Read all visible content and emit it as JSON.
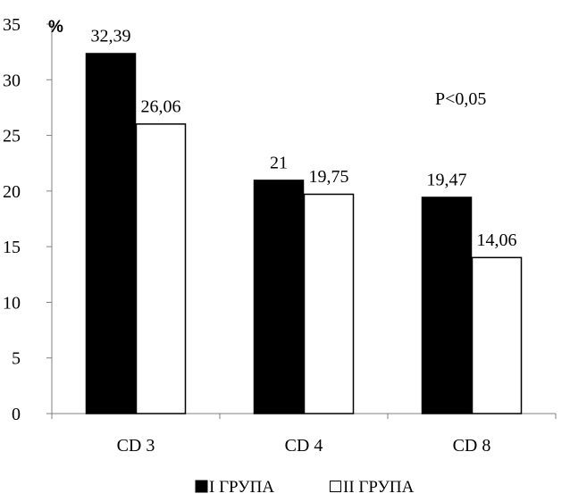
{
  "chart_data": {
    "type": "bar",
    "unit_label": "%",
    "annotation": "P<0,05",
    "categories": [
      "CD 3",
      "CD 4",
      "CD 8"
    ],
    "ylim": [
      0,
      35
    ],
    "yticks": [
      "0",
      "5",
      "10",
      "15",
      "20",
      "25",
      "30",
      "35"
    ],
    "ytick_values": [
      0,
      5,
      10,
      15,
      20,
      25,
      30,
      35
    ],
    "grid": false,
    "legend_position": "bottom",
    "series": [
      {
        "name": "I ГРУПА",
        "color": "#000000",
        "values": [
          32.39,
          21,
          19.47
        ],
        "labels": [
          "32,39",
          "21",
          "19,47"
        ]
      },
      {
        "name": "II ГРУПА",
        "color": "#ffffff",
        "values": [
          26.06,
          19.75,
          14.06
        ],
        "labels": [
          "26,06",
          "19,75",
          "14,06"
        ]
      }
    ]
  }
}
